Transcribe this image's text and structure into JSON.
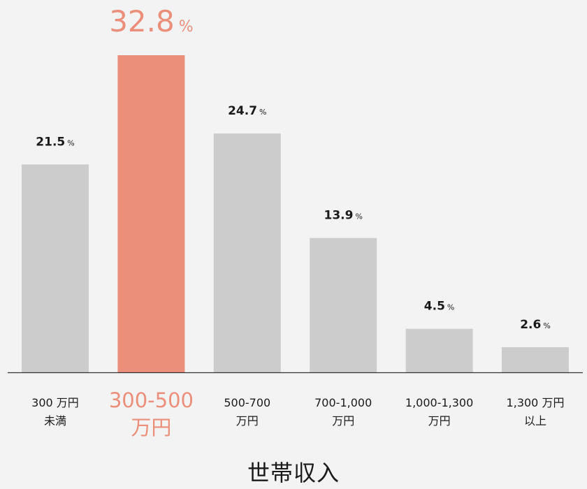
{
  "chart_data": {
    "type": "bar",
    "xlabel": "世帯収入",
    "ylabel": "",
    "unit": "%",
    "ylim": [
      0,
      32.8
    ],
    "categories": [
      [
        "300 万円",
        "未満"
      ],
      [
        "300-500",
        "万円"
      ],
      [
        "500-700",
        "万円"
      ],
      [
        "700-1,000",
        "万円"
      ],
      [
        "1,000-1,300",
        "万円"
      ],
      [
        "1,300 万円",
        "以上"
      ]
    ],
    "values": [
      21.5,
      32.8,
      24.7,
      13.9,
      4.5,
      2.6
    ],
    "value_labels": [
      "21.5",
      "32.8",
      "24.7",
      "13.9",
      "4.5",
      "2.6"
    ],
    "highlight_index": 1,
    "colors": {
      "bar": "#cccccc",
      "highlight": "#ec8f7a",
      "text": "#1a1a1a",
      "axis": "#333333",
      "background": "#f3f3f3"
    }
  }
}
